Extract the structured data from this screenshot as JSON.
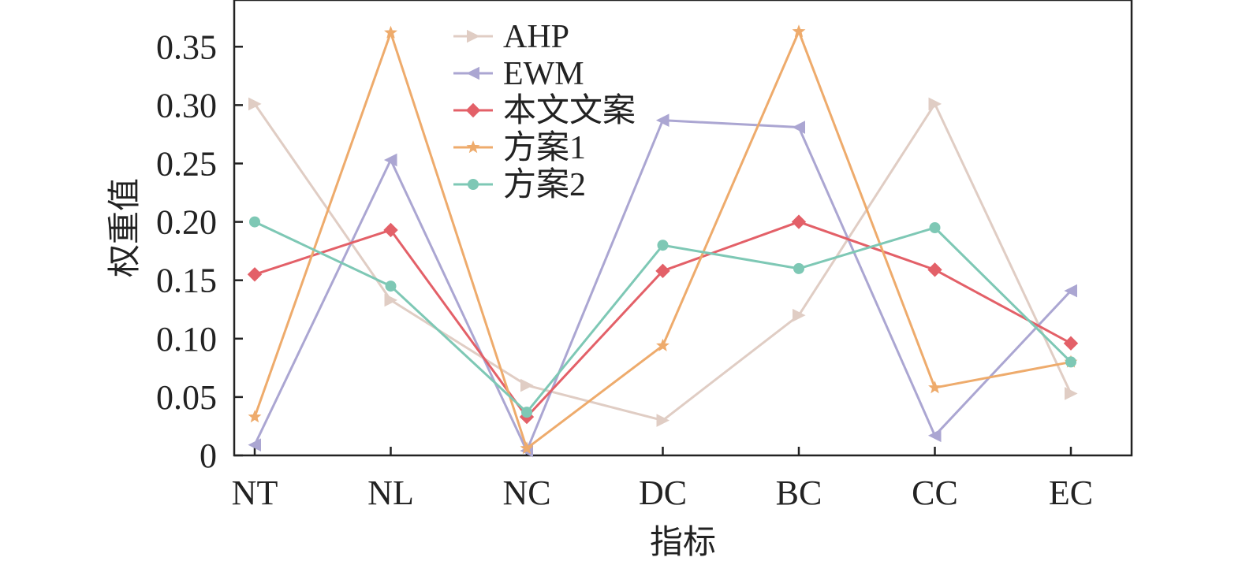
{
  "chart_data": {
    "type": "line",
    "xlabel": "指标",
    "ylabel": "权重值",
    "categories": [
      "NT",
      "NL",
      "NC",
      "DC",
      "BC",
      "CC",
      "EC"
    ],
    "ylim": [
      0,
      0.39
    ],
    "yticks": [
      0,
      0.05,
      0.1,
      0.15,
      0.2,
      0.25,
      0.3,
      0.35
    ],
    "ytick_labels": [
      "0",
      "0.05",
      "0.10",
      "0.15",
      "0.20",
      "0.25",
      "0.30",
      "0.35"
    ],
    "grid": false,
    "legend_position": "top-center",
    "series": [
      {
        "name": "AHP",
        "color": "#e0cdc4",
        "marker": "triangle-right",
        "values": [
          0.301,
          0.133,
          0.06,
          0.03,
          0.12,
          0.301,
          0.053
        ]
      },
      {
        "name": "EWM",
        "color": "#aba6d2",
        "marker": "triangle-left",
        "values": [
          0.009,
          0.253,
          0.004,
          0.287,
          0.281,
          0.017,
          0.141
        ]
      },
      {
        "name": "本文文案",
        "color": "#e36068",
        "marker": "diamond",
        "values": [
          0.155,
          0.193,
          0.033,
          0.158,
          0.2,
          0.159,
          0.096
        ]
      },
      {
        "name": "方案1",
        "color": "#eeab6c",
        "marker": "star",
        "values": [
          0.033,
          0.362,
          0.006,
          0.094,
          0.363,
          0.058,
          0.08
        ]
      },
      {
        "name": "方案2",
        "color": "#7ec8b5",
        "marker": "circle",
        "values": [
          0.2,
          0.145,
          0.037,
          0.18,
          0.16,
          0.195,
          0.08
        ]
      }
    ]
  }
}
